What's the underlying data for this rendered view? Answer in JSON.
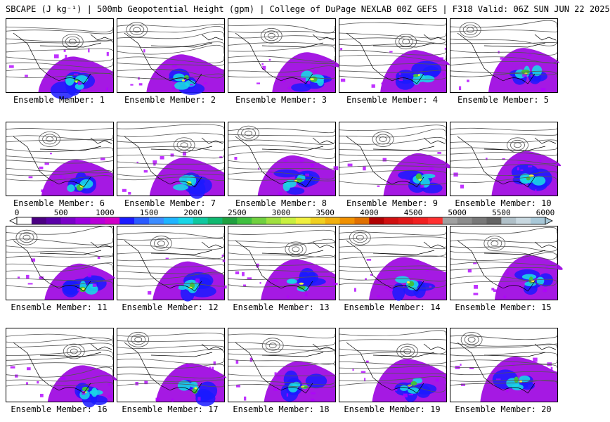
{
  "header": {
    "title": "SBCAPE (J kg⁻¹) | 500mb Geopotential Height (gpm) | College of DuPage NEXLAB 00Z GEFS | F318 Valid: 06Z SUN JUN 22 2025"
  },
  "panels": [
    {
      "label": "Ensemble Member: 1"
    },
    {
      "label": "Ensemble Member: 2"
    },
    {
      "label": "Ensemble Member: 3"
    },
    {
      "label": "Ensemble Member: 4"
    },
    {
      "label": "Ensemble Member: 5"
    },
    {
      "label": "Ensemble Member: 6"
    },
    {
      "label": "Ensemble Member: 7"
    },
    {
      "label": "Ensemble Member: 8"
    },
    {
      "label": "Ensemble Member: 9"
    },
    {
      "label": "Ensemble Member: 10"
    },
    {
      "label": "Ensemble Member: 11"
    },
    {
      "label": "Ensemble Member: 12"
    },
    {
      "label": "Ensemble Member: 13"
    },
    {
      "label": "Ensemble Member: 14"
    },
    {
      "label": "Ensemble Member: 15"
    },
    {
      "label": "Ensemble Member: 16"
    },
    {
      "label": "Ensemble Member: 17"
    },
    {
      "label": "Ensemble Member: 18"
    },
    {
      "label": "Ensemble Member: 19"
    },
    {
      "label": "Ensemble Member: 20"
    }
  ],
  "colorbar": {
    "ticks": [
      "0",
      "500",
      "1000",
      "1500",
      "2000",
      "2500",
      "3000",
      "3500",
      "4000",
      "4500",
      "5000",
      "5500",
      "6000"
    ],
    "colors": [
      "#ffffff",
      "#4b0082",
      "#5a00a8",
      "#7a00c8",
      "#9b00e0",
      "#b800d8",
      "#d000c8",
      "#1a1aff",
      "#2a5bff",
      "#3c8cff",
      "#20b4ff",
      "#19d6e6",
      "#10c8a0",
      "#10b870",
      "#20a040",
      "#40c040",
      "#70d040",
      "#a0e040",
      "#c8f040",
      "#f0f040",
      "#f0d020",
      "#f0b010",
      "#f09000",
      "#e07000",
      "#b00000",
      "#d01010",
      "#e01818",
      "#f02020",
      "#ff3030",
      "#a0a0a0",
      "#8c8c8c",
      "#787878",
      "#646464",
      "#b0c0c8",
      "#c8d8e0",
      "#a8c8d8"
    ],
    "accent_purple": "#b000ff",
    "accent_cyan": "#00ffff"
  }
}
